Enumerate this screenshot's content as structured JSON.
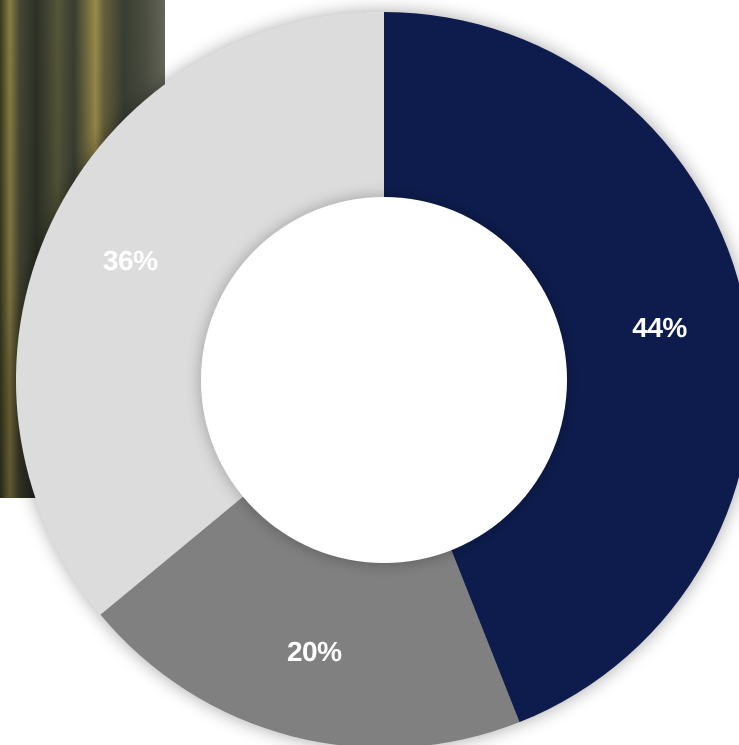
{
  "chart_data": {
    "type": "pie",
    "variant": "donut",
    "title": "",
    "legend": "none",
    "slices": [
      {
        "label": "44%",
        "value": 44,
        "color": "#111f4d"
      },
      {
        "label": "20%",
        "value": 20,
        "color": "#808080"
      },
      {
        "label": "36%",
        "value": 36,
        "color": "#dcdcdc"
      }
    ]
  },
  "colors": {
    "hole": "#ffffff",
    "label_text": "#ffffff"
  }
}
